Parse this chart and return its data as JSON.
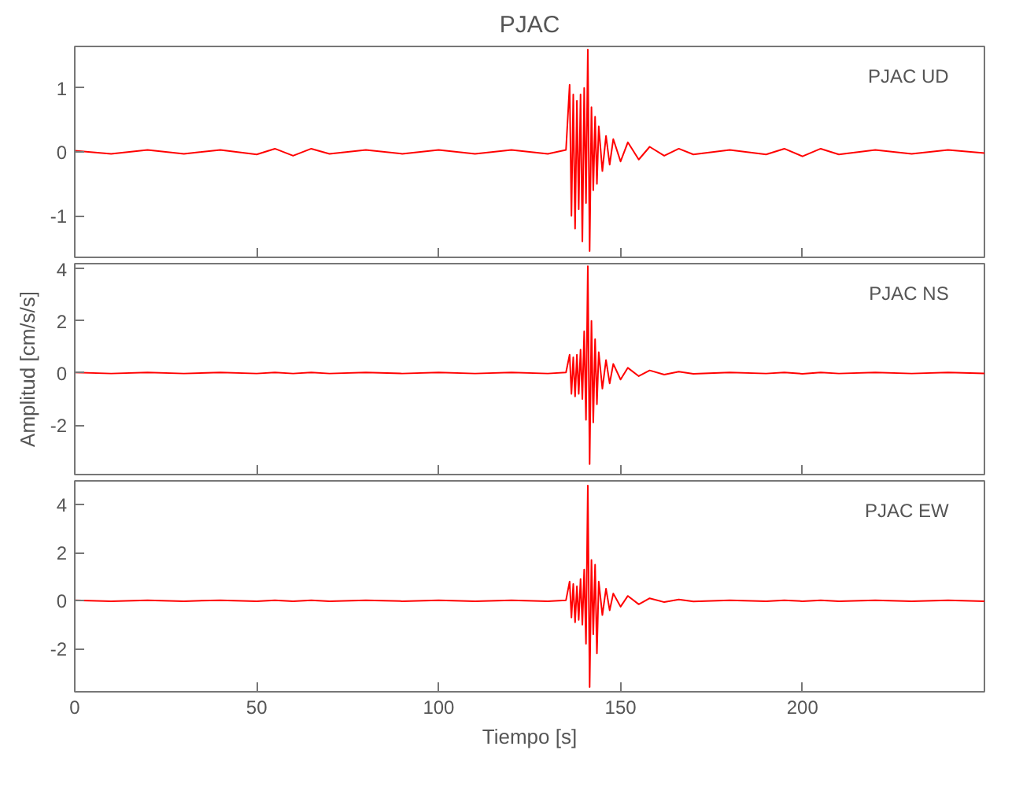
{
  "chart_data": [
    {
      "type": "line",
      "title": "PJAC",
      "annotations": [
        "PJAC   UD"
      ],
      "x": [
        0,
        10,
        20,
        30,
        40,
        50,
        55,
        60,
        65,
        70,
        80,
        90,
        100,
        110,
        120,
        130,
        135,
        136,
        136.5,
        137,
        137.5,
        138,
        138.5,
        139,
        139.5,
        140,
        140.5,
        141,
        141.5,
        142,
        142.5,
        143,
        143.5,
        144,
        145,
        146,
        147,
        148,
        150,
        152,
        155,
        158,
        162,
        166,
        170,
        180,
        190,
        195,
        200,
        205,
        210,
        220,
        230,
        240,
        250
      ],
      "series": [
        {
          "color": "#ff0000",
          "values": [
            0.02,
            -0.03,
            0.03,
            -0.03,
            0.03,
            -0.04,
            0.05,
            -0.06,
            0.05,
            -0.03,
            0.03,
            -0.03,
            0.03,
            -0.03,
            0.03,
            -0.03,
            0.03,
            1.05,
            -1.0,
            0.9,
            -1.2,
            0.8,
            -0.9,
            0.9,
            -1.4,
            1.0,
            -0.8,
            1.6,
            -1.55,
            0.7,
            -0.6,
            0.55,
            -0.5,
            0.4,
            -0.3,
            0.25,
            -0.2,
            0.2,
            -0.15,
            0.15,
            -0.12,
            0.08,
            -0.06,
            0.05,
            -0.04,
            0.03,
            -0.04,
            0.05,
            -0.07,
            0.05,
            -0.04,
            0.03,
            -0.03,
            0.03,
            -0.02
          ]
        }
      ],
      "xlim": [
        0,
        250
      ],
      "ylim": [
        -1.65,
        1.65
      ],
      "xticks": [
        0,
        50,
        100,
        150,
        200
      ],
      "yticks": [
        -1,
        0,
        1
      ],
      "tick_labels": "y"
    },
    {
      "type": "line",
      "ylabel": "Amplitud [cm/s/s]",
      "annotations": [
        "PJAC   NS"
      ],
      "x": [
        0,
        10,
        20,
        30,
        40,
        50,
        55,
        60,
        65,
        70,
        80,
        90,
        100,
        110,
        120,
        130,
        135,
        136,
        136.5,
        137,
        137.5,
        138,
        138.5,
        139,
        139.5,
        140,
        140.5,
        141,
        141.5,
        142,
        142.5,
        143,
        143.5,
        144,
        145,
        146,
        147,
        148,
        150,
        152,
        155,
        158,
        162,
        166,
        170,
        180,
        190,
        195,
        200,
        205,
        210,
        220,
        230,
        240,
        250
      ],
      "series": [
        {
          "color": "#ff0000",
          "values": [
            0.02,
            -0.02,
            0.02,
            -0.02,
            0.02,
            -0.02,
            0.02,
            -0.02,
            0.02,
            -0.02,
            0.02,
            -0.02,
            0.02,
            -0.02,
            0.02,
            -0.02,
            0.02,
            0.7,
            -0.8,
            0.6,
            -0.9,
            0.7,
            -0.8,
            0.9,
            -1.0,
            1.6,
            -1.8,
            4.1,
            -3.5,
            2.0,
            -1.9,
            1.3,
            -1.2,
            0.8,
            -0.6,
            0.5,
            -0.4,
            0.35,
            -0.25,
            0.2,
            -0.12,
            0.1,
            -0.06,
            0.05,
            -0.03,
            0.02,
            -0.02,
            0.02,
            -0.03,
            0.02,
            -0.02,
            0.02,
            -0.02,
            0.02,
            -0.02
          ]
        }
      ],
      "xlim": [
        0,
        250
      ],
      "ylim": [
        -3.9,
        4.2
      ],
      "xticks": [
        0,
        50,
        100,
        150,
        200
      ],
      "yticks": [
        -2,
        0,
        2,
        4
      ],
      "tick_labels": "y"
    },
    {
      "type": "line",
      "xlabel": "Tiempo [s]",
      "annotations": [
        "PJAC   EW"
      ],
      "x": [
        0,
        10,
        20,
        30,
        40,
        50,
        55,
        60,
        65,
        70,
        80,
        90,
        100,
        110,
        120,
        130,
        135,
        136,
        136.5,
        137,
        137.5,
        138,
        138.5,
        139,
        139.5,
        140,
        140.5,
        141,
        141.5,
        142,
        142.5,
        143,
        143.5,
        144,
        145,
        146,
        147,
        148,
        150,
        152,
        155,
        158,
        162,
        166,
        170,
        180,
        190,
        195,
        200,
        205,
        210,
        220,
        230,
        240,
        250
      ],
      "series": [
        {
          "color": "#ff0000",
          "values": [
            0.02,
            -0.02,
            0.02,
            -0.02,
            0.02,
            -0.02,
            0.02,
            -0.02,
            0.02,
            -0.02,
            0.02,
            -0.02,
            0.02,
            -0.02,
            0.02,
            -0.02,
            0.02,
            0.8,
            -0.7,
            0.7,
            -0.9,
            0.6,
            -0.8,
            0.9,
            -1.0,
            1.3,
            -1.8,
            4.8,
            -3.6,
            1.7,
            -1.4,
            1.5,
            -2.2,
            0.8,
            -0.6,
            0.5,
            -0.4,
            0.3,
            -0.25,
            0.2,
            -0.15,
            0.1,
            -0.06,
            0.05,
            -0.03,
            0.02,
            -0.02,
            0.02,
            -0.02,
            0.02,
            -0.02,
            0.02,
            -0.02,
            0.02,
            -0.02
          ]
        }
      ],
      "xlim": [
        0,
        250
      ],
      "ylim": [
        -3.8,
        5.0
      ],
      "xticks": [
        0,
        50,
        100,
        150,
        200
      ],
      "yticks": [
        -2,
        0,
        2,
        4
      ]
    }
  ]
}
